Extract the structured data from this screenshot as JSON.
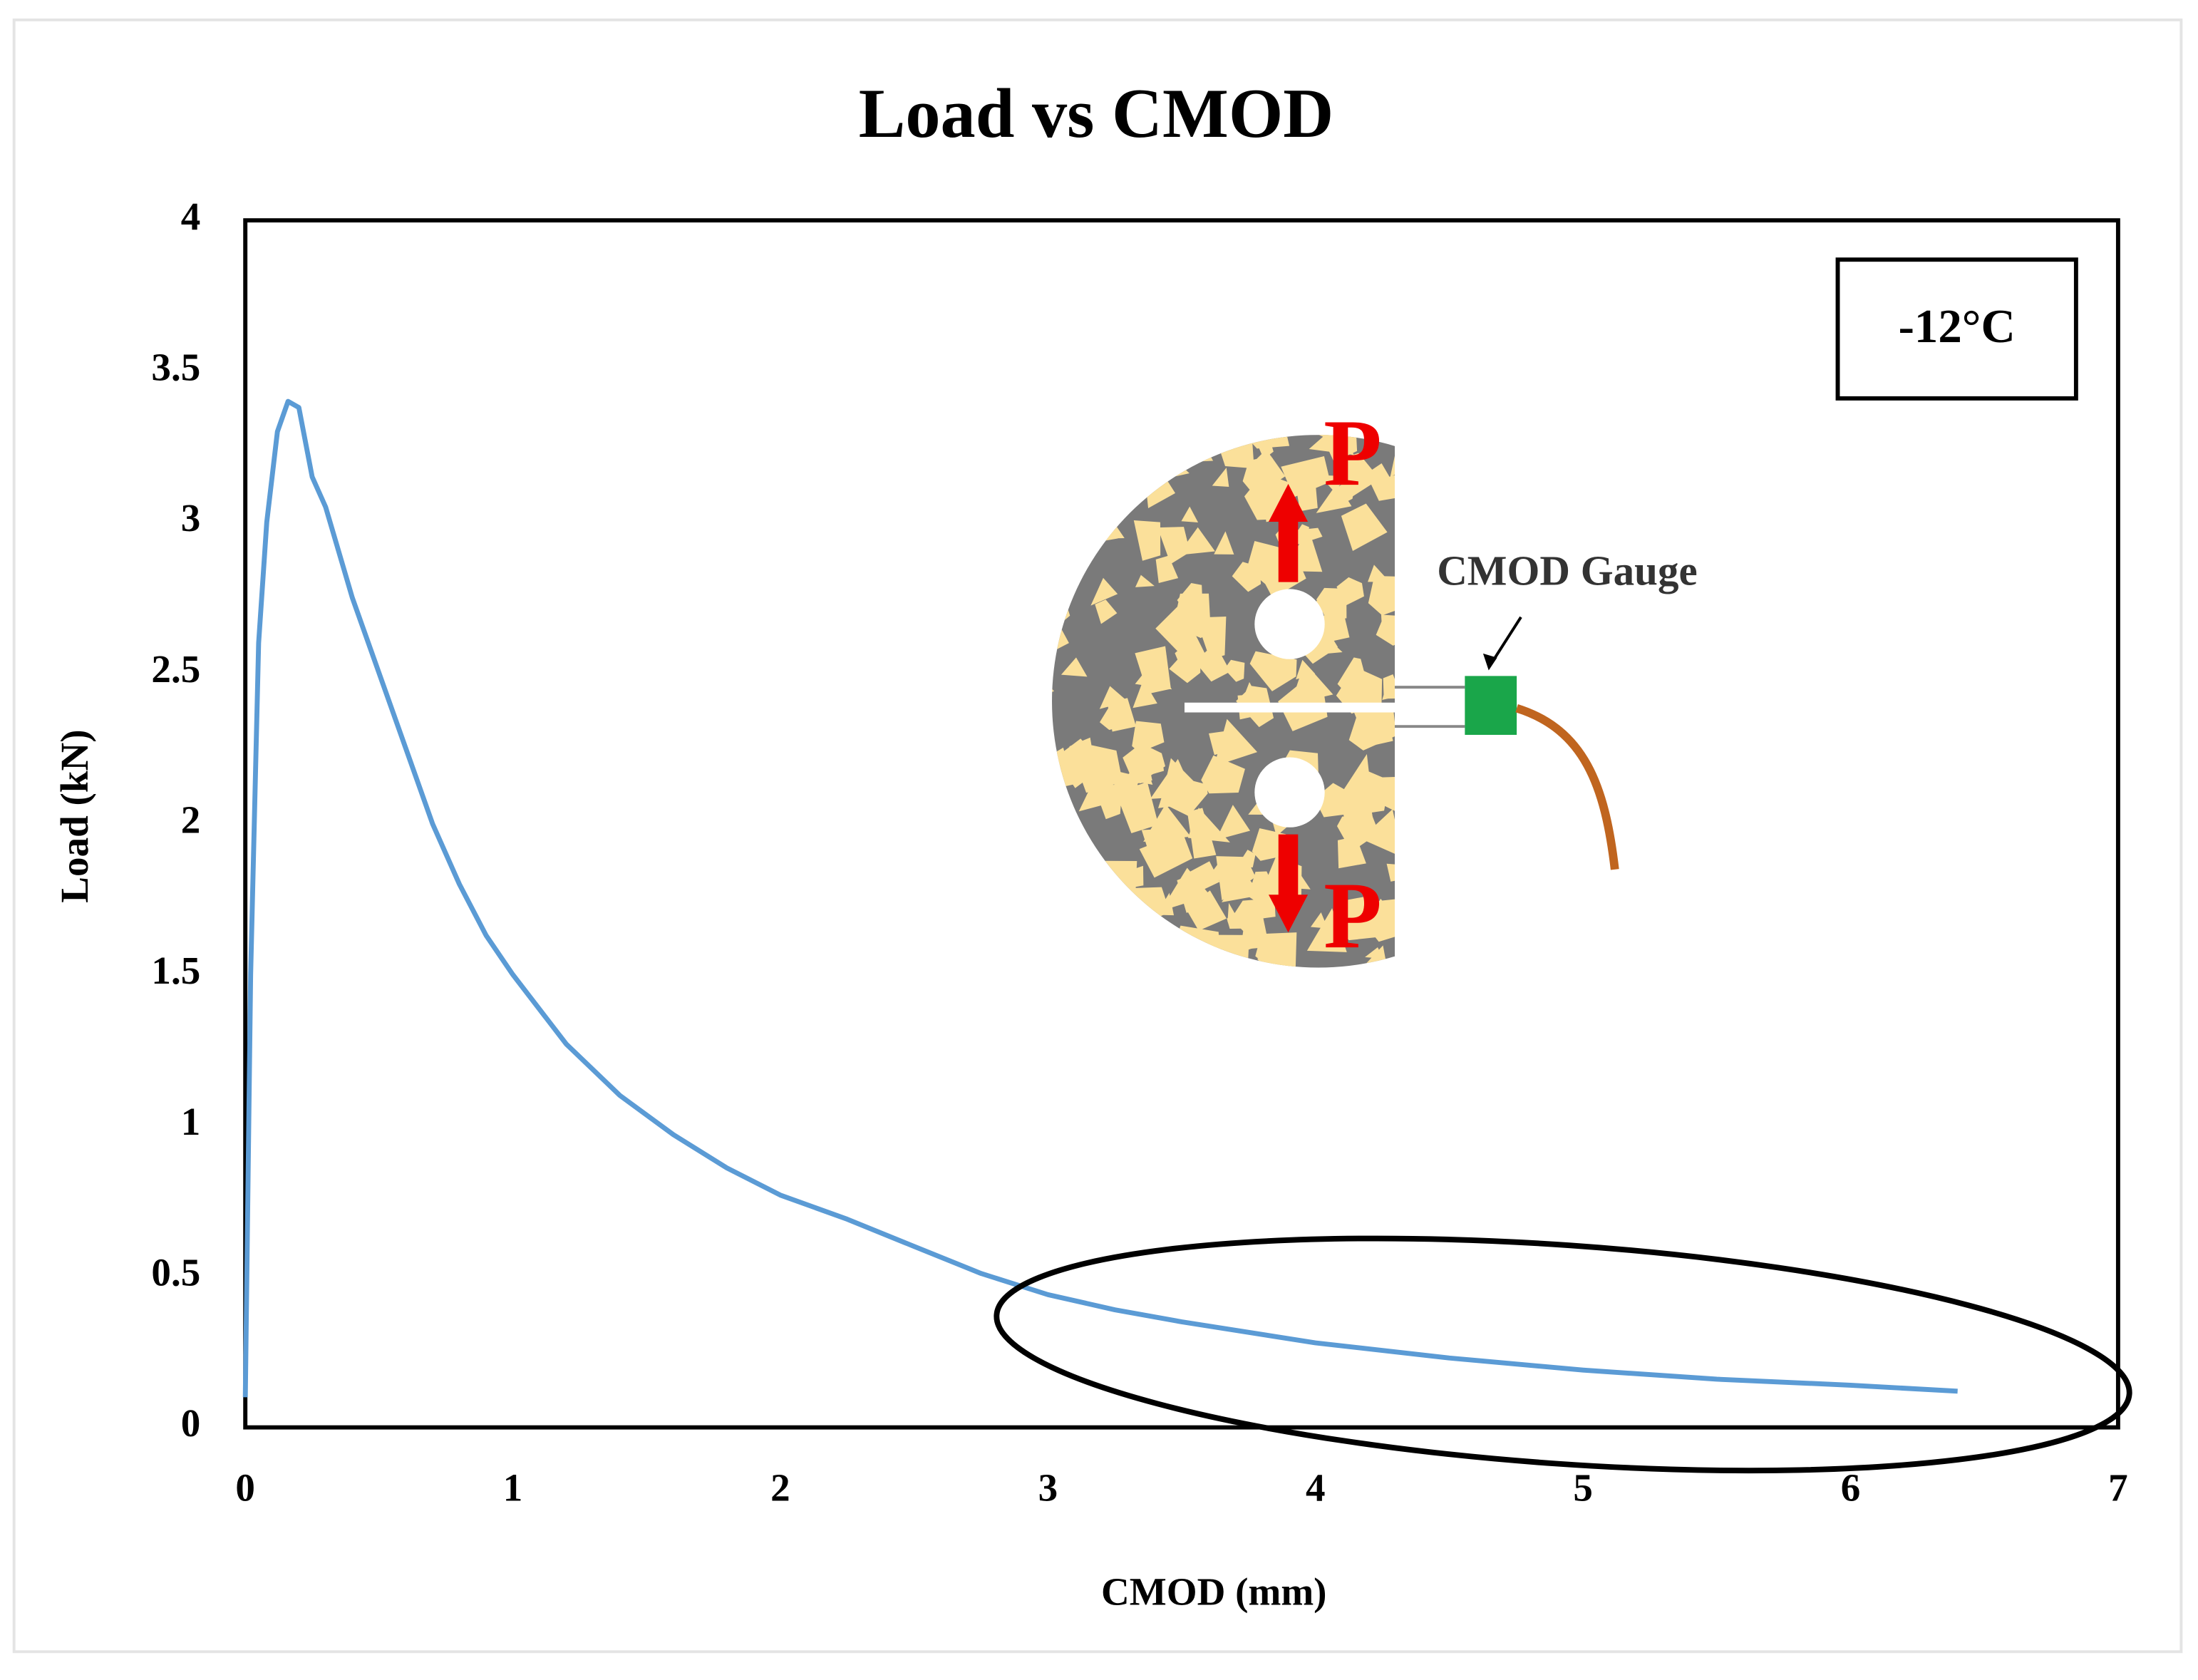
{
  "chart_data": {
    "type": "line",
    "title": "Load vs CMOD",
    "x_label": "CMOD (mm)",
    "y_label": "Load (kN)",
    "annotations": [
      "-12°C",
      "CMOD Gauge",
      "P",
      "P"
    ],
    "xlim": [
      0,
      7
    ],
    "xticks": [
      0,
      1,
      2,
      3,
      4,
      5,
      6,
      7
    ],
    "ylim": [
      0,
      4
    ],
    "yticks": [
      0,
      0.5,
      1,
      1.5,
      2,
      2.5,
      3,
      3.5,
      4
    ],
    "x": [
      0,
      0.02,
      0.05,
      0.08,
      0.12,
      0.16,
      0.2,
      0.25,
      0.3,
      0.4,
      0.5,
      0.6,
      0.7,
      0.8,
      0.9,
      1.0,
      1.2,
      1.4,
      1.6,
      1.8,
      2.0,
      2.25,
      2.5,
      2.75,
      3.0,
      3.25,
      3.5,
      4.0,
      4.5,
      5.0,
      5.5,
      6.0,
      6.4
    ],
    "series": [
      {
        "name": "Load",
        "color": "#5b9bd5",
        "values": [
          0.1,
          1.5,
          2.6,
          3.0,
          3.3,
          3.4,
          3.38,
          3.15,
          3.05,
          2.75,
          2.5,
          2.25,
          2.0,
          1.8,
          1.63,
          1.5,
          1.27,
          1.1,
          0.97,
          0.86,
          0.77,
          0.69,
          0.6,
          0.51,
          0.44,
          0.39,
          0.35,
          0.28,
          0.23,
          0.19,
          0.16,
          0.14,
          0.12
        ]
      }
    ]
  }
}
